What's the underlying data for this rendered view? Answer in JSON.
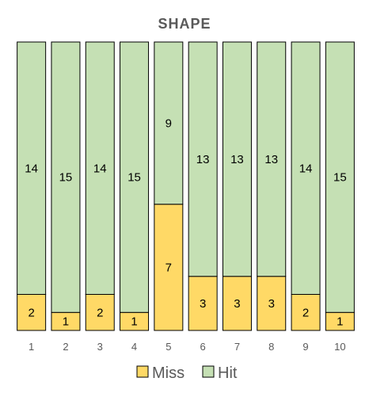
{
  "chart_data": {
    "type": "bar",
    "stacked": true,
    "title": "SHAPE",
    "xlabel": "",
    "ylabel": "",
    "categories": [
      "1",
      "2",
      "3",
      "4",
      "5",
      "6",
      "7",
      "8",
      "9",
      "10"
    ],
    "series": [
      {
        "name": "Miss",
        "color": "#FFD966",
        "values": [
          2,
          1,
          2,
          1,
          7,
          3,
          3,
          3,
          2,
          1
        ]
      },
      {
        "name": "Hit",
        "color": "#C5E0B4",
        "values": [
          14,
          15,
          14,
          15,
          9,
          13,
          13,
          13,
          14,
          15
        ]
      }
    ],
    "ylim": [
      0,
      16
    ],
    "grid": false,
    "legend": "bottom",
    "colors": {
      "title": "#595959",
      "tick": "#595959",
      "value": "#000000",
      "bar_edge": "#000000"
    }
  }
}
